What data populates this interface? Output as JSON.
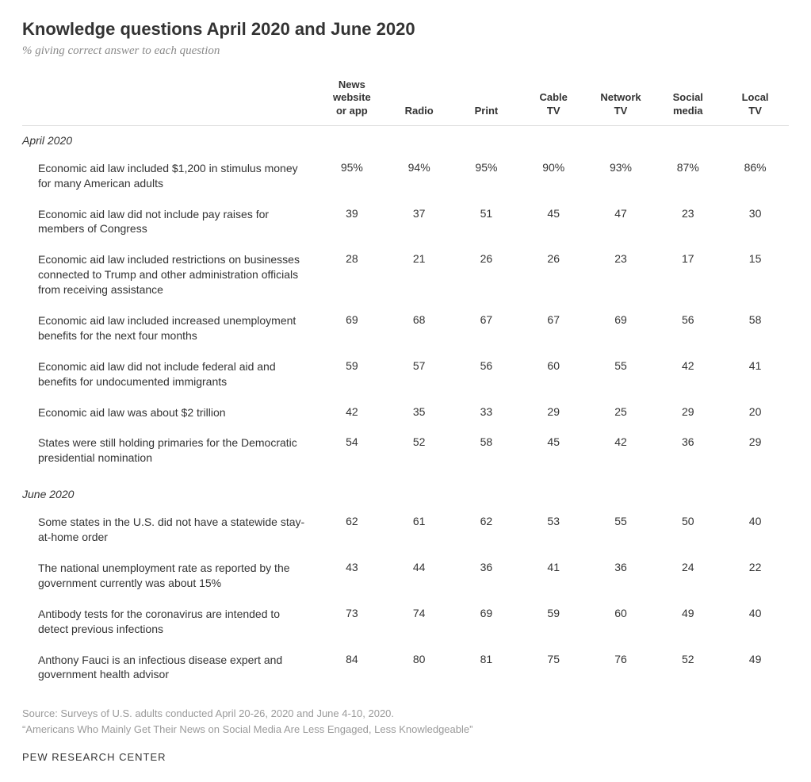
{
  "title": "Knowledge questions April 2020 and June 2020",
  "subtitle": "% giving correct answer to each question",
  "columns": [
    "News\nwebsite\nor app",
    "Radio",
    "Print",
    "Cable\nTV",
    "Network\nTV",
    "Social\nmedia",
    "Local\nTV"
  ],
  "sections": [
    {
      "label": "April 2020",
      "rows": [
        {
          "label": "Economic aid law included $1,200 in stimulus money for many American adults",
          "values": [
            "95%",
            "94%",
            "95%",
            "90%",
            "93%",
            "87%",
            "86%"
          ]
        },
        {
          "label": "Economic aid law did not include pay raises for members of Congress",
          "values": [
            "39",
            "37",
            "51",
            "45",
            "47",
            "23",
            "30"
          ]
        },
        {
          "label": "Economic aid law included restrictions on businesses connected to Trump and other administration officials from receiving assistance",
          "values": [
            "28",
            "21",
            "26",
            "26",
            "23",
            "17",
            "15"
          ]
        },
        {
          "label": "Economic aid law included increased unemployment benefits for the next four months",
          "values": [
            "69",
            "68",
            "67",
            "67",
            "69",
            "56",
            "58"
          ]
        },
        {
          "label": "Economic aid law did not include federal aid and benefits for undocumented immigrants",
          "values": [
            "59",
            "57",
            "56",
            "60",
            "55",
            "42",
            "41"
          ]
        },
        {
          "label": "Economic aid law was about $2 trillion",
          "values": [
            "42",
            "35",
            "33",
            "29",
            "25",
            "29",
            "20"
          ]
        },
        {
          "label": "States were still holding primaries for the Democratic presidential nomination",
          "values": [
            "54",
            "52",
            "58",
            "45",
            "42",
            "36",
            "29"
          ]
        }
      ]
    },
    {
      "label": "June 2020",
      "rows": [
        {
          "label": "Some states in the U.S. did not have a statewide stay-at-home order",
          "values": [
            "62",
            "61",
            "62",
            "53",
            "55",
            "50",
            "40"
          ]
        },
        {
          "label": "The national unemployment rate as reported by the government currently was about 15%",
          "values": [
            "43",
            "44",
            "36",
            "41",
            "36",
            "24",
            "22"
          ]
        },
        {
          "label": "Antibody tests for the coronavirus are intended to detect previous infections",
          "values": [
            "73",
            "74",
            "69",
            "59",
            "60",
            "49",
            "40"
          ]
        },
        {
          "label": "Anthony Fauci is an infectious disease expert and government health advisor",
          "values": [
            "84",
            "80",
            "81",
            "75",
            "76",
            "52",
            "49"
          ]
        }
      ]
    }
  ],
  "source_line1": "Source: Surveys of U.S. adults conducted April 20-26, 2020 and June 4-10, 2020.",
  "source_line2": "“Americans Who Mainly Get Their News on Social Media Are Less Engaged, Less Knowledgeable”",
  "footer": "PEW RESEARCH CENTER"
}
